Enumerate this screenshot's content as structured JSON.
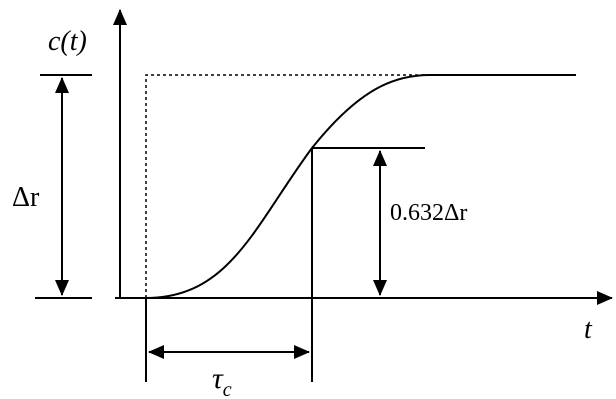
{
  "labels": {
    "response": "c(t)",
    "time": "t",
    "step_size": "Δr",
    "fraction": "0.632Δr",
    "time_constant": {
      "symbol": "τ",
      "subscript": "c"
    }
  }
}
